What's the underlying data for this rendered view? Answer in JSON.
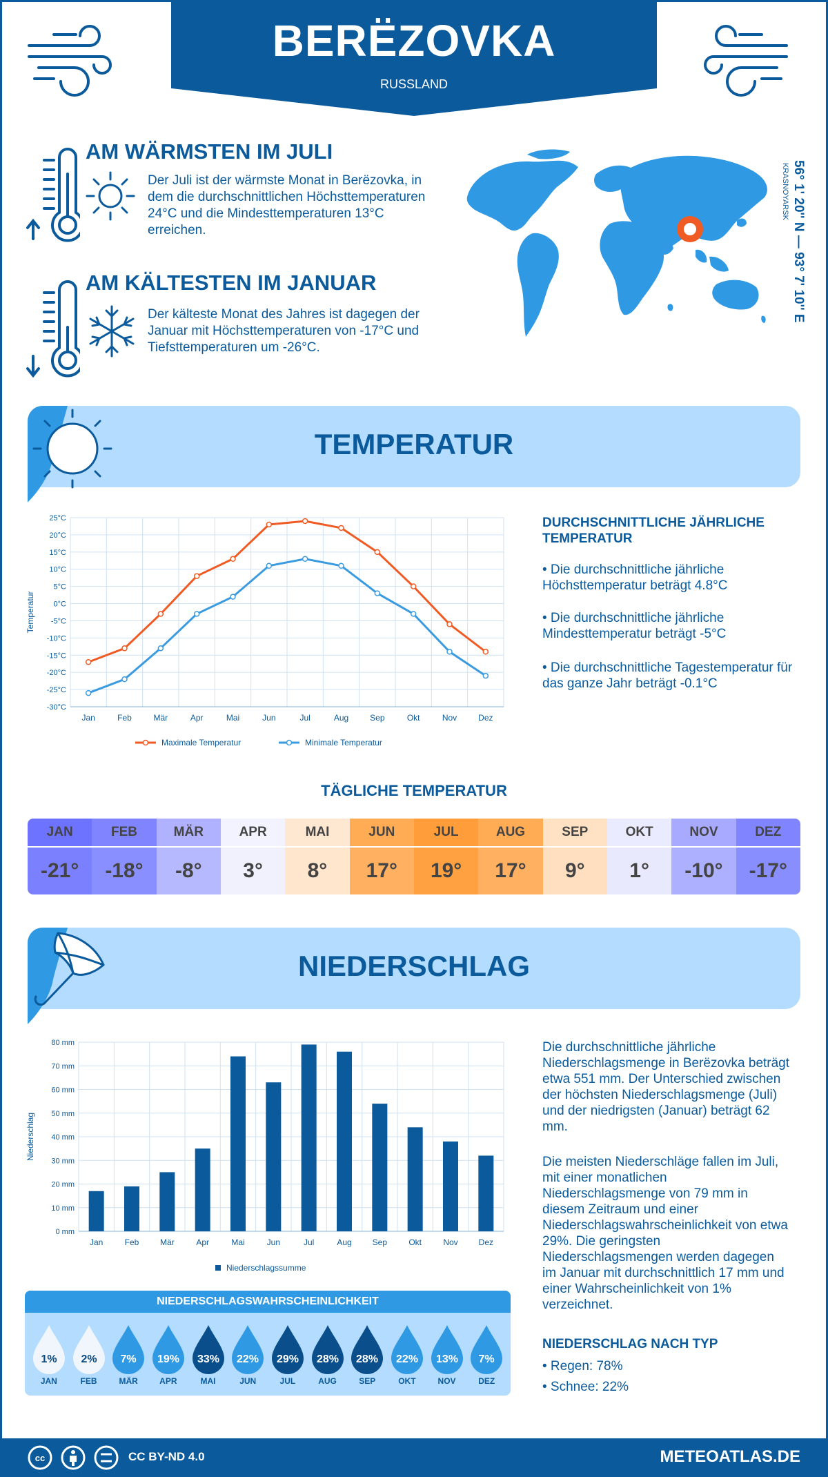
{
  "header": {
    "city": "BERËZOVKA",
    "country": "RUSSLAND",
    "coordinates": "56° 1' 20'' N — 93° 7' 10'' E",
    "region": "KRASNOYARSK"
  },
  "warmest": {
    "title": "AM WÄRMSTEN IM JULI",
    "text": "Der Juli ist der wärmste Monat in Berëzovka, in dem die durchschnittlichen Höchsttemperaturen 24°C und die Mindesttemperaturen 13°C erreichen."
  },
  "coldest": {
    "title": "AM KÄLTESTEN IM JANUAR",
    "text": "Der kälteste Monat des Jahres ist dagegen der Januar mit Höchsttemperaturen von -17°C und Tiefsttemperaturen um -26°C."
  },
  "temperature_section": {
    "title": "TEMPERATUR",
    "side_title": "DURCHSCHNITTLICHE JÄHRLICHE TEMPERATUR",
    "bullets": [
      "• Die durchschnittliche jährliche Höchsttemperatur beträgt 4.8°C",
      "• Die durchschnittliche jährliche Mindesttemperatur beträgt -5°C",
      "• Die durchschnittliche Tagestemperatur für das ganze Jahr beträgt -0.1°C"
    ]
  },
  "daily": {
    "title": "TÄGLICHE TEMPERATUR",
    "cells": [
      {
        "month": "JAN",
        "value": "-21°",
        "head": "#6d72ff",
        "body": "#7a80ff"
      },
      {
        "month": "FEB",
        "value": "-18°",
        "head": "#8085ff",
        "body": "#8a8fff"
      },
      {
        "month": "MÄR",
        "value": "-8°",
        "head": "#b0b2ff",
        "body": "#b7b9ff"
      },
      {
        "month": "APR",
        "value": "3°",
        "head": "#f3f3ff",
        "body": "#f1f1fd"
      },
      {
        "month": "MAI",
        "value": "8°",
        "head": "#ffe8d2",
        "body": "#ffe6cc"
      },
      {
        "month": "JUN",
        "value": "17°",
        "head": "#ffac55",
        "body": "#ffb060"
      },
      {
        "month": "JUL",
        "value": "19°",
        "head": "#ff9d3a",
        "body": "#ffa140"
      },
      {
        "month": "AUG",
        "value": "17°",
        "head": "#ffac55",
        "body": "#ffb060"
      },
      {
        "month": "SEP",
        "value": "9°",
        "head": "#ffe2c4",
        "body": "#ffdfbf"
      },
      {
        "month": "OKT",
        "value": "1°",
        "head": "#ebebff",
        "body": "#e9e9fd"
      },
      {
        "month": "NOV",
        "value": "-10°",
        "head": "#a8aaff",
        "body": "#adafff"
      },
      {
        "month": "DEZ",
        "value": "-17°",
        "head": "#8085ff",
        "body": "#898eff"
      }
    ]
  },
  "precip_section": {
    "title": "NIEDERSCHLAG",
    "text1": "Die durchschnittliche jährliche Niederschlagsmenge in Berëzovka beträgt etwa 551 mm. Der Unterschied zwischen der höchsten Niederschlagsmenge (Juli) und der niedrigsten (Januar) beträgt 62 mm.",
    "text2": "Die meisten Niederschläge fallen im Juli, mit einer monatlichen Niederschlagsmenge von 79 mm in diesem Zeitraum und einer Niederschlagswahrscheinlichkeit von etwa 29%. Die geringsten Niederschlagsmengen werden dagegen im Januar mit durchschnittlich 17 mm und einer Wahrscheinlichkeit von 1% verzeichnet.",
    "type_title": "NIEDERSCHLAG NACH TYP",
    "types": [
      "• Regen: 78%",
      "• Schnee: 22%"
    ]
  },
  "probability": {
    "title": "NIEDERSCHLAGSWAHRSCHEINLICHKEIT",
    "items": [
      {
        "month": "JAN",
        "value": "1%",
        "color": "#f0f6fc",
        "text": "#0a4a80"
      },
      {
        "month": "FEB",
        "value": "2%",
        "color": "#f0f6fc",
        "text": "#0a4a80"
      },
      {
        "month": "MÄR",
        "value": "7%",
        "color": "#2f9ae3",
        "text": "#ffffff"
      },
      {
        "month": "APR",
        "value": "19%",
        "color": "#2f9ae3",
        "text": "#ffffff"
      },
      {
        "month": "MAI",
        "value": "33%",
        "color": "#0a4f8c",
        "text": "#ffffff"
      },
      {
        "month": "JUN",
        "value": "22%",
        "color": "#2f9ae3",
        "text": "#ffffff"
      },
      {
        "month": "JUL",
        "value": "29%",
        "color": "#0a4f8c",
        "text": "#ffffff"
      },
      {
        "month": "AUG",
        "value": "28%",
        "color": "#0a4f8c",
        "text": "#ffffff"
      },
      {
        "month": "SEP",
        "value": "28%",
        "color": "#0a4f8c",
        "text": "#ffffff"
      },
      {
        "month": "OKT",
        "value": "22%",
        "color": "#2f9ae3",
        "text": "#ffffff"
      },
      {
        "month": "NOV",
        "value": "13%",
        "color": "#2f9ae3",
        "text": "#ffffff"
      },
      {
        "month": "DEZ",
        "value": "7%",
        "color": "#2f9ae3",
        "text": "#ffffff"
      }
    ]
  },
  "footer": {
    "license": "CC BY-ND 4.0",
    "brand": "METEOATLAS.DE"
  },
  "chart_data": [
    {
      "type": "line",
      "ylabel": "Temperatur",
      "categories": [
        "Jan",
        "Feb",
        "Mär",
        "Apr",
        "Mai",
        "Jun",
        "Jul",
        "Aug",
        "Sep",
        "Okt",
        "Nov",
        "Dez"
      ],
      "yticks": [
        "25°C",
        "20°C",
        "15°C",
        "10°C",
        "5°C",
        "0°C",
        "-5°C",
        "-10°C",
        "-15°C",
        "-20°C",
        "-25°C",
        "-30°C"
      ],
      "ylim": [
        -30,
        25
      ],
      "grid": true,
      "legend_position": "bottom",
      "series": [
        {
          "name": "Maximale Temperatur",
          "color": "#f05a23",
          "values": [
            -17,
            -13,
            -3,
            8,
            13,
            23,
            24,
            22,
            15,
            5,
            -6,
            -14
          ]
        },
        {
          "name": "Minimale Temperatur",
          "color": "#3b9be0",
          "values": [
            -26,
            -22,
            -13,
            -3,
            2,
            11,
            13,
            11,
            3,
            -3,
            -14,
            -21
          ]
        }
      ]
    },
    {
      "type": "bar",
      "ylabel": "Niederschlag",
      "categories": [
        "Jan",
        "Feb",
        "Mär",
        "Apr",
        "Mai",
        "Jun",
        "Jul",
        "Aug",
        "Sep",
        "Okt",
        "Nov",
        "Dez"
      ],
      "yticks": [
        "80 mm",
        "70 mm",
        "60 mm",
        "50 mm",
        "40 mm",
        "30 mm",
        "20 mm",
        "10 mm",
        "0 mm"
      ],
      "ylim": [
        0,
        80
      ],
      "grid": true,
      "legend_position": "bottom",
      "series": [
        {
          "name": "Niederschlagssumme",
          "color": "#0a5a9c",
          "values": [
            17,
            19,
            25,
            35,
            74,
            63,
            79,
            76,
            54,
            44,
            38,
            32
          ]
        }
      ]
    }
  ]
}
